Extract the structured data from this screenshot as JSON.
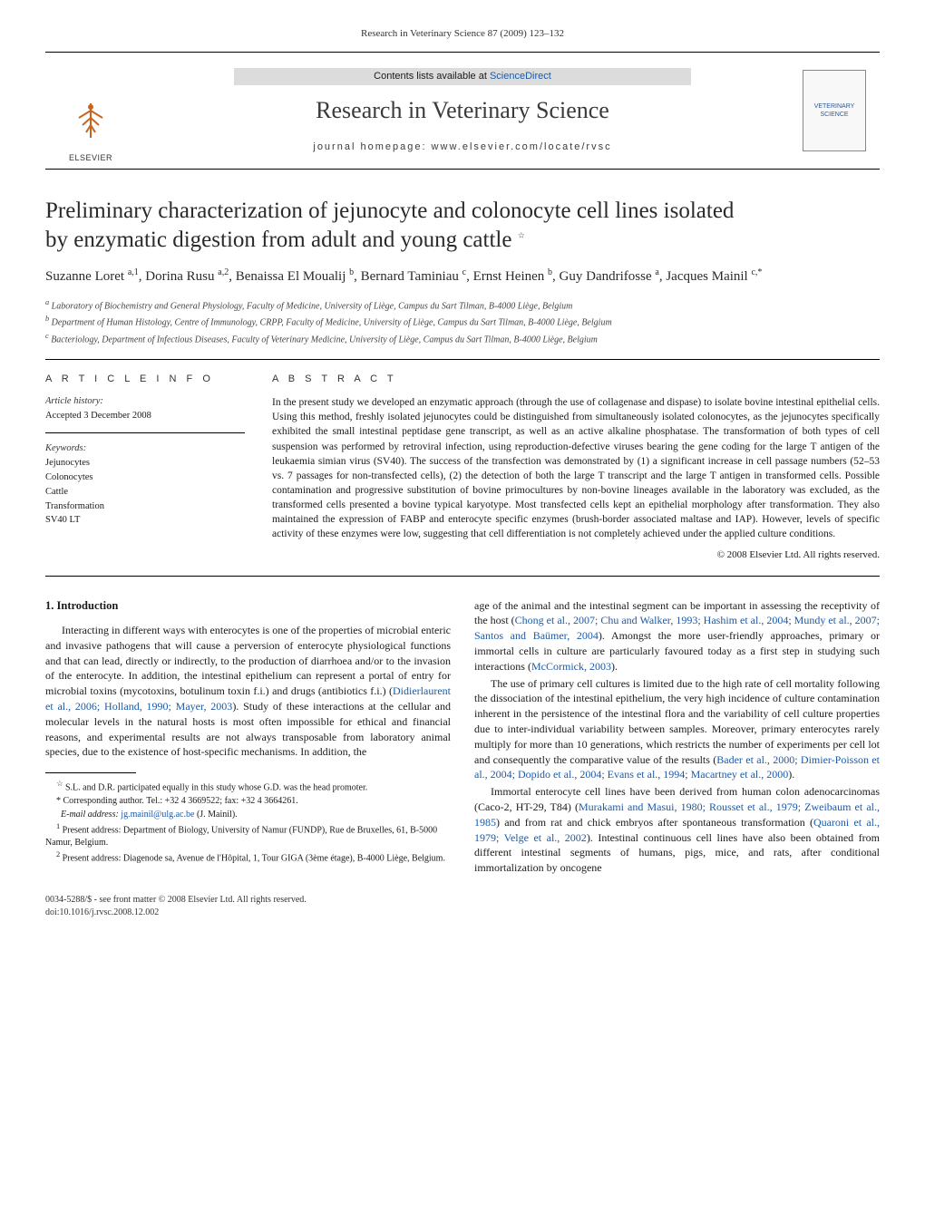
{
  "running_head": "Research in Veterinary Science 87 (2009) 123–132",
  "banner": {
    "contents_prefix": "Contents lists available at ",
    "contents_link": "ScienceDirect",
    "journal_title": "Research in Veterinary Science",
    "homepage_label": "journal homepage: www.elsevier.com/locate/rvsc",
    "publisher": "ELSEVIER",
    "cover_text": "VETERINARY SCIENCE"
  },
  "article": {
    "title_line1": "Preliminary characterization of jejunocyte and colonocyte cell lines isolated",
    "title_line2": "by enzymatic digestion from adult and young cattle",
    "star": "☆",
    "authors_html": "Suzanne Loret <sup>a,1</sup>, Dorina Rusu <sup>a,2</sup>, Benaissa El Moualij <sup>b</sup>, Bernard Taminiau <sup>c</sup>, Ernst Heinen <sup>b</sup>, Guy Dandrifosse <sup>a</sup>, Jacques Mainil <sup>c,*</sup>",
    "affiliations": {
      "a": "Laboratory of Biochemistry and General Physiology, Faculty of Medicine, University of Liège, Campus du Sart Tilman, B-4000 Liège, Belgium",
      "b": "Department of Human Histology, Centre of Immunology, CRPP, Faculty of Medicine, University of Liège, Campus du Sart Tilman, B-4000 Liège, Belgium",
      "c": "Bacteriology, Department of Infectious Diseases, Faculty of Veterinary Medicine, University of Liège, Campus du Sart Tilman, B-4000 Liège, Belgium"
    }
  },
  "meta": {
    "info_heading": "A R T I C L E   I N F O",
    "history_label": "Article history:",
    "accepted": "Accepted 3 December 2008",
    "keywords_label": "Keywords:",
    "keywords": [
      "Jejunocytes",
      "Colonocytes",
      "Cattle",
      "Transformation",
      "SV40 LT"
    ],
    "abstract_heading": "A B S T R A C T",
    "abstract": "In the present study we developed an enzymatic approach (through the use of collagenase and dispase) to isolate bovine intestinal epithelial cells. Using this method, freshly isolated jejunocytes could be distinguished from simultaneously isolated colonocytes, as the jejunocytes specifically exhibited the small intestinal peptidase gene transcript, as well as an active alkaline phosphatase. The transformation of both types of cell suspension was performed by retroviral infection, using reproduction-defective viruses bearing the gene coding for the large T antigen of the leukaemia simian virus (SV40). The success of the transfection was demonstrated by (1) a significant increase in cell passage numbers (52–53 vs. 7 passages for non-transfected cells), (2) the detection of both the large T transcript and the large T antigen in transformed cells. Possible contamination and progressive substitution of bovine primocultures by non-bovine lineages available in the laboratory was excluded, as the transformed cells presented a bovine typical karyotype. Most transfected cells kept an epithelial morphology after transformation. They also maintained the expression of FABP and enterocyte specific enzymes (brush-border associated maltase and IAP). However, levels of specific activity of these enzymes were low, suggesting that cell differentiation is not completely achieved under the applied culture conditions.",
    "copyright": "© 2008 Elsevier Ltd. All rights reserved."
  },
  "body": {
    "section1_heading": "1. Introduction",
    "p1_a": "Interacting in different ways with enterocytes is one of the properties of microbial enteric and invasive pathogens that will cause a perversion of enterocyte physiological functions and that can lead, directly or indirectly, to the production of diarrhoea and/or to the invasion of the enterocyte. In addition, the intestinal epithelium can represent a portal of entry for microbial toxins (mycotoxins, botulinum toxin f.i.) and drugs (antibiotics f.i.) (",
    "p1_cite": "Didierlaurent et al., 2006; Holland, 1990; Mayer, 2003",
    "p1_b": "). Study of these interactions at the cellular and molecular levels in the natural hosts is most often impossible for ethical and financial reasons, and experimental results are not always transposable from laboratory animal species, due to the existence of host-specific mechanisms. In addition, the",
    "p2_a": "age of the animal and the intestinal segment can be important in assessing the receptivity of the host (",
    "p2_cite": "Chong et al., 2007; Chu and Walker, 1993; Hashim et al., 2004; Mundy et al., 2007; Santos and Baümer, 2004",
    "p2_b": "). Amongst the more user-friendly approaches, primary or immortal cells in culture are particularly favoured today as a first step in studying such interactions (",
    "p2_cite2": "McCormick, 2003",
    "p2_c": ").",
    "p3_a": "The use of primary cell cultures is limited due to the high rate of cell mortality following the dissociation of the intestinal epithelium, the very high incidence of culture contamination inherent in the persistence of the intestinal flora and the variability of cell culture properties due to inter-individual variability between samples. Moreover, primary enterocytes rarely multiply for more than 10 generations, which restricts the number of experiments per cell lot and consequently the comparative value of the results (",
    "p3_cite": "Bader et al., 2000; Dimier-Poisson et al., 2004; Dopido et al., 2004; Evans et al., 1994; Macartney et al., 2000",
    "p3_b": ").",
    "p4_a": "Immortal enterocyte cell lines have been derived from human colon adenocarcinomas (Caco-2, HT-29, T84) (",
    "p4_cite": "Murakami and Masui, 1980; Rousset et al., 1979; Zweibaum et al., 1985",
    "p4_b": ") and from rat and chick embryos after spontaneous transformation (",
    "p4_cite2": "Quaroni et al., 1979; Velge et al., 2002",
    "p4_c": "). Intestinal continuous cell lines have also been obtained from different intestinal segments of humans, pigs, mice, and rats, after conditional immortalization by oncogene"
  },
  "footnotes": {
    "star": "S.L. and D.R. participated equally in this study whose G.D. was the head promoter.",
    "corr": "Corresponding author. Tel.: +32 4 3669522; fax: +32 4 3664261.",
    "email_label": "E-mail address:",
    "email": "jg.mainil@ulg.ac.be",
    "email_suffix": " (J. Mainil).",
    "fn1": "Present address: Department of Biology, University of Namur (FUNDP), Rue de Bruxelles, 61, B-5000 Namur, Belgium.",
    "fn2": "Present address: Diagenode sa, Avenue de l'Hôpital, 1, Tour GIGA (3ème étage), B-4000 Liège, Belgium."
  },
  "footer": {
    "line1": "0034-5288/$ - see front matter © 2008 Elsevier Ltd. All rights reserved.",
    "line2": "doi:10.1016/j.rvsc.2008.12.002"
  }
}
